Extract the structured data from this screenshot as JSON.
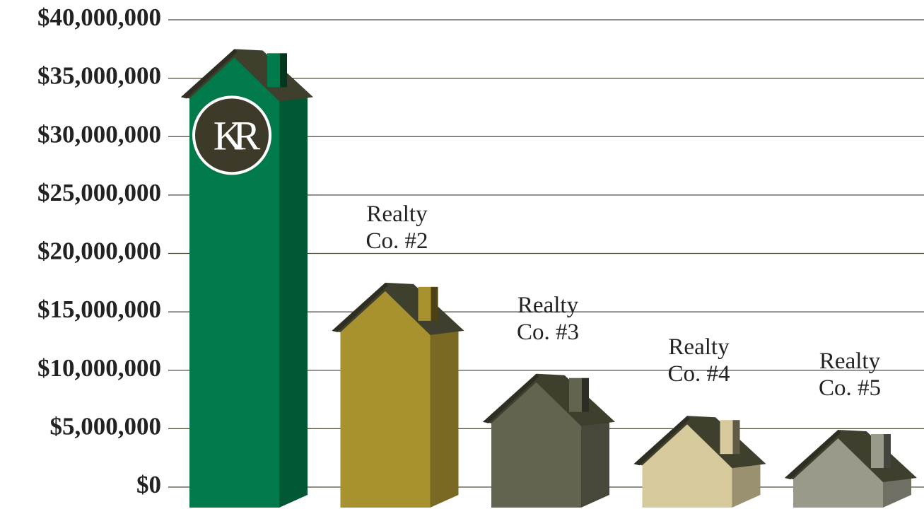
{
  "chart_data": {
    "type": "bar",
    "categories": [
      null,
      "Realty Co. #2",
      "Realty Co. #3",
      "Realty Co. #4",
      "Realty Co. #5"
    ],
    "values": [
      37500000,
      17500000,
      9700000,
      6100000,
      4900000
    ],
    "colors": [
      "#007a4a",
      "#a8922f",
      "#63644f",
      "#d6c99c",
      "#9a9a8b"
    ],
    "logo": "KR",
    "ylim": [
      0,
      40000000
    ],
    "yticks": [
      {
        "value": 0,
        "label": "$0"
      },
      {
        "value": 5000000,
        "label": "$5,000,000"
      },
      {
        "value": 10000000,
        "label": "$10,000,000"
      },
      {
        "value": 15000000,
        "label": "$15,000,000"
      },
      {
        "value": 20000000,
        "label": "$20,000,000"
      },
      {
        "value": 25000000,
        "label": "$25,000,000"
      },
      {
        "value": 30000000,
        "label": "$30,000,000"
      },
      {
        "value": 35000000,
        "label": "$35,000,000"
      },
      {
        "value": 40000000,
        "label": "$40,000,000"
      }
    ],
    "grid": true
  }
}
